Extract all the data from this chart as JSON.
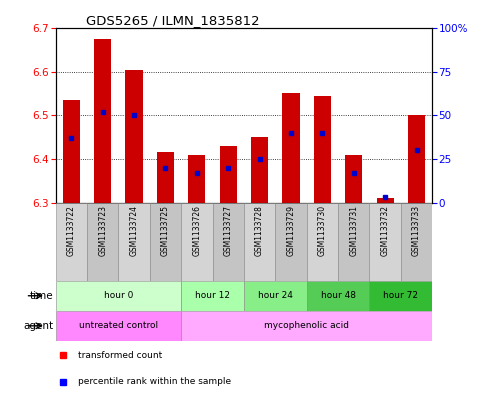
{
  "title": "GDS5265 / ILMN_1835812",
  "samples": [
    "GSM1133722",
    "GSM1133723",
    "GSM1133724",
    "GSM1133725",
    "GSM1133726",
    "GSM1133727",
    "GSM1133728",
    "GSM1133729",
    "GSM1133730",
    "GSM1133731",
    "GSM1133732",
    "GSM1133733"
  ],
  "bar_tops": [
    6.535,
    6.675,
    6.605,
    6.415,
    6.41,
    6.43,
    6.45,
    6.55,
    6.545,
    6.41,
    6.31,
    6.5
  ],
  "bar_bottoms": [
    6.3,
    6.3,
    6.3,
    6.3,
    6.3,
    6.3,
    6.3,
    6.3,
    6.3,
    6.3,
    6.3,
    6.3
  ],
  "percentile_values": [
    37,
    52,
    50,
    20,
    17,
    20,
    25,
    40,
    40,
    17,
    3,
    30
  ],
  "ylim_left": [
    6.3,
    6.7
  ],
  "ylim_right": [
    0,
    100
  ],
  "yticks_left": [
    6.3,
    6.4,
    6.5,
    6.6,
    6.7
  ],
  "yticks_right": [
    0,
    25,
    50,
    75,
    100
  ],
  "ytick_labels_right": [
    "0",
    "25",
    "50",
    "75",
    "100%"
  ],
  "bar_color": "#cc0000",
  "percentile_color": "#0000cc",
  "bar_width": 0.55,
  "bg_color": "#ffffff",
  "plot_bg_color": "#ffffff",
  "time_groups": [
    {
      "label": "hour 0",
      "start": 0,
      "end": 3,
      "color": "#ccffcc"
    },
    {
      "label": "hour 12",
      "start": 4,
      "end": 5,
      "color": "#aaffaa"
    },
    {
      "label": "hour 24",
      "start": 6,
      "end": 7,
      "color": "#88ee88"
    },
    {
      "label": "hour 48",
      "start": 8,
      "end": 9,
      "color": "#55cc55"
    },
    {
      "label": "hour 72",
      "start": 10,
      "end": 11,
      "color": "#33bb33"
    }
  ],
  "agent_groups": [
    {
      "label": "untreated control",
      "start": 0,
      "end": 3,
      "color": "#ff88ff"
    },
    {
      "label": "mycophenolic acid",
      "start": 4,
      "end": 11,
      "color": "#ffaaff"
    }
  ],
  "legend_red": "transformed count",
  "legend_blue": "percentile rank within the sample",
  "label_time": "time",
  "label_agent": "agent"
}
